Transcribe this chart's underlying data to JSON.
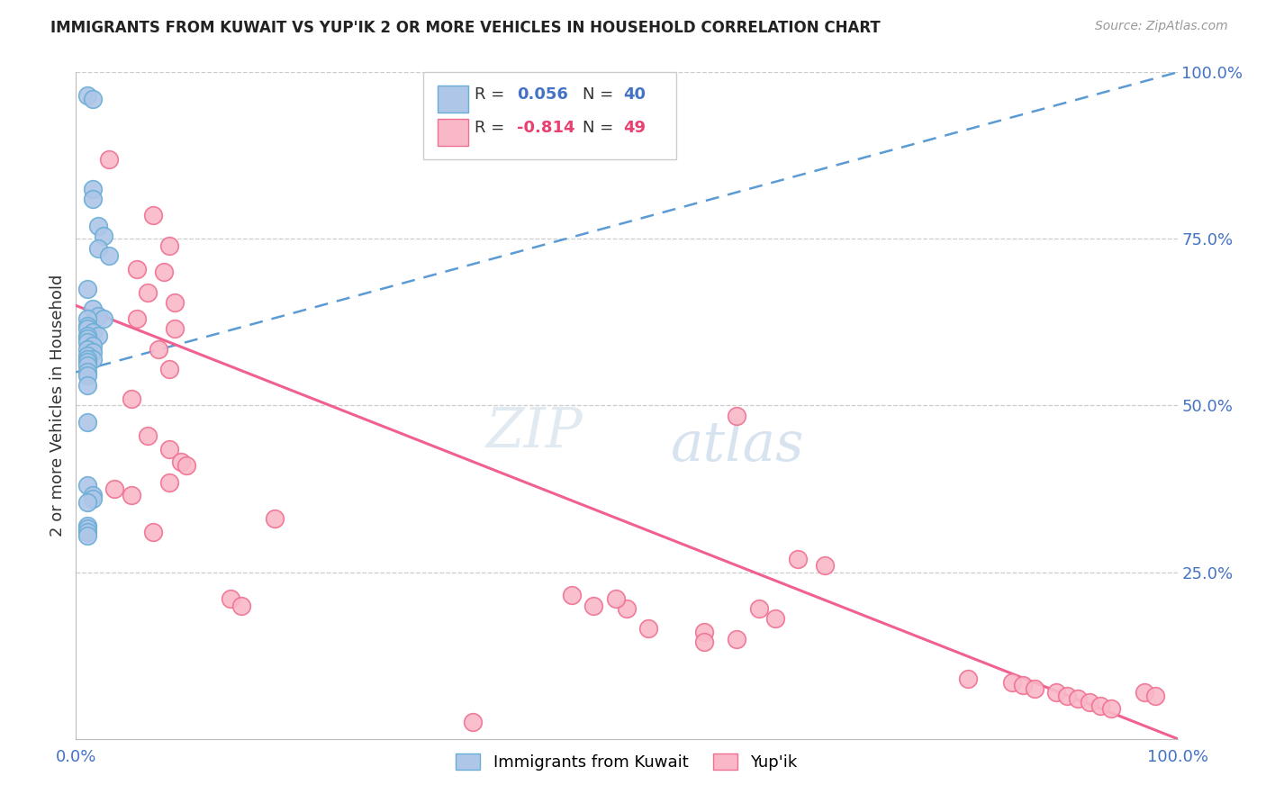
{
  "title": "IMMIGRANTS FROM KUWAIT VS YUP'IK 2 OR MORE VEHICLES IN HOUSEHOLD CORRELATION CHART",
  "source": "Source: ZipAtlas.com",
  "ylabel": "2 or more Vehicles in Household",
  "color_blue": "#aec6e8",
  "color_pink": "#f9b8c8",
  "edge_blue": "#6aaed6",
  "edge_pink": "#f07090",
  "trendline_blue_color": "#5b9bd5",
  "trendline_pink_color": "#f06090",
  "watermark_zip": "ZIP",
  "watermark_atlas": "atlas",
  "blue_trendline": [
    0,
    55,
    100,
    100
  ],
  "pink_trendline": [
    0,
    65,
    100,
    0
  ],
  "blue_points": [
    [
      1.0,
      96.5
    ],
    [
      1.5,
      96.0
    ],
    [
      1.5,
      82.5
    ],
    [
      1.5,
      81.0
    ],
    [
      2.0,
      77.0
    ],
    [
      2.5,
      75.5
    ],
    [
      2.0,
      73.5
    ],
    [
      3.0,
      72.5
    ],
    [
      1.0,
      67.5
    ],
    [
      1.5,
      64.5
    ],
    [
      2.0,
      63.5
    ],
    [
      2.5,
      63.0
    ],
    [
      1.0,
      63.0
    ],
    [
      1.0,
      62.0
    ],
    [
      1.0,
      61.5
    ],
    [
      1.5,
      61.0
    ],
    [
      2.0,
      60.5
    ],
    [
      1.0,
      60.5
    ],
    [
      1.0,
      60.0
    ],
    [
      1.0,
      59.5
    ],
    [
      1.5,
      59.0
    ],
    [
      1.0,
      58.5
    ],
    [
      1.5,
      58.0
    ],
    [
      1.0,
      57.5
    ],
    [
      1.5,
      57.0
    ],
    [
      1.0,
      57.0
    ],
    [
      1.0,
      56.5
    ],
    [
      1.0,
      56.0
    ],
    [
      1.0,
      55.0
    ],
    [
      1.0,
      54.5
    ],
    [
      1.0,
      53.0
    ],
    [
      1.0,
      47.5
    ],
    [
      1.0,
      38.0
    ],
    [
      1.5,
      36.5
    ],
    [
      1.5,
      36.0
    ],
    [
      1.0,
      35.5
    ],
    [
      1.0,
      32.0
    ],
    [
      1.0,
      31.5
    ],
    [
      1.0,
      31.0
    ],
    [
      1.0,
      30.5
    ]
  ],
  "pink_points": [
    [
      3.0,
      87.0
    ],
    [
      7.0,
      78.5
    ],
    [
      8.5,
      74.0
    ],
    [
      5.5,
      70.5
    ],
    [
      8.0,
      70.0
    ],
    [
      6.5,
      67.0
    ],
    [
      9.0,
      65.5
    ],
    [
      5.5,
      63.0
    ],
    [
      9.0,
      61.5
    ],
    [
      7.5,
      58.5
    ],
    [
      8.5,
      55.5
    ],
    [
      5.0,
      51.0
    ],
    [
      6.5,
      45.5
    ],
    [
      8.5,
      43.5
    ],
    [
      9.5,
      41.5
    ],
    [
      10.0,
      41.0
    ],
    [
      8.5,
      38.5
    ],
    [
      3.5,
      37.5
    ],
    [
      5.0,
      36.5
    ],
    [
      18.0,
      33.0
    ],
    [
      7.0,
      31.0
    ],
    [
      60.0,
      48.5
    ],
    [
      65.5,
      27.0
    ],
    [
      68.0,
      26.0
    ],
    [
      14.0,
      21.0
    ],
    [
      15.0,
      20.0
    ],
    [
      62.0,
      19.5
    ],
    [
      63.5,
      18.0
    ],
    [
      52.0,
      16.5
    ],
    [
      57.0,
      16.0
    ],
    [
      81.0,
      9.0
    ],
    [
      85.0,
      8.5
    ],
    [
      86.0,
      8.0
    ],
    [
      87.0,
      7.5
    ],
    [
      89.0,
      7.0
    ],
    [
      90.0,
      6.5
    ],
    [
      91.0,
      6.0
    ],
    [
      92.0,
      5.5
    ],
    [
      93.0,
      5.0
    ],
    [
      94.0,
      4.5
    ],
    [
      36.0,
      2.5
    ],
    [
      57.0,
      14.5
    ],
    [
      47.0,
      20.0
    ],
    [
      50.0,
      19.5
    ],
    [
      97.0,
      7.0
    ],
    [
      98.0,
      6.5
    ],
    [
      45.0,
      21.5
    ],
    [
      49.0,
      21.0
    ],
    [
      60.0,
      15.0
    ]
  ],
  "grid_color": "#cccccc",
  "axis_color": "#4472c4",
  "title_fontsize": 12,
  "label_fontsize": 13,
  "tick_fontsize": 13
}
